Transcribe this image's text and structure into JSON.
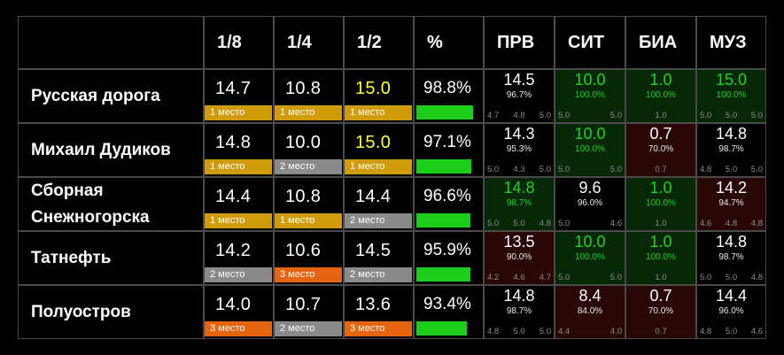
{
  "columns": {
    "r18": "1/8",
    "r14": "1/4",
    "r12": "1/2",
    "pct": "%",
    "prv": "ПРВ",
    "sit": "СИТ",
    "bia": "БИА",
    "muz": "МУЗ"
  },
  "colors": {
    "place_1": "#d19c0c",
    "place_2": "#8a8a8a",
    "place_3": "#e5640f",
    "progress": "#1ccd1c",
    "winner_text": "#ffff3a",
    "good_bg": "#062806",
    "bad_bg": "#2a0707",
    "good_text": "#22d022"
  },
  "teams": [
    {
      "name": "Русская дорога",
      "rounds": [
        {
          "score": "14.7",
          "place": "1 место",
          "rank": 1,
          "winner": false
        },
        {
          "score": "10.8",
          "place": "1 место",
          "rank": 1,
          "winner": false
        },
        {
          "score": "15.0",
          "place": "1 место",
          "rank": 1,
          "winner": true
        }
      ],
      "percent": "98.8%",
      "percent_value": 0.988,
      "judges": [
        {
          "score": "14.5",
          "sub": "96.7%",
          "marks": [
            "4.7",
            "4.8",
            "5.0"
          ],
          "tone": "neutral"
        },
        {
          "score": "10.0",
          "sub": "100.0%",
          "marks": [
            "5.0",
            "5.0"
          ],
          "tone": "green"
        },
        {
          "score": "1.0",
          "sub": "100.0%",
          "marks": [
            "1.0"
          ],
          "tone": "green"
        },
        {
          "score": "15.0",
          "sub": "100.0%",
          "marks": [
            "5.0",
            "5.0",
            "5.0"
          ],
          "tone": "green"
        }
      ]
    },
    {
      "name": "Михаил Дудиков",
      "rounds": [
        {
          "score": "14.8",
          "place": "1 место",
          "rank": 1,
          "winner": false
        },
        {
          "score": "10.0",
          "place": "2 место",
          "rank": 2,
          "winner": false
        },
        {
          "score": "15.0",
          "place": "1 место",
          "rank": 1,
          "winner": true
        }
      ],
      "percent": "97.1%",
      "percent_value": 0.971,
      "judges": [
        {
          "score": "14.3",
          "sub": "95.3%",
          "marks": [
            "5.0",
            "4.3",
            "5.0"
          ],
          "tone": "neutral"
        },
        {
          "score": "10.0",
          "sub": "100.0%",
          "marks": [
            "5.0",
            "5.0"
          ],
          "tone": "green"
        },
        {
          "score": "0.7",
          "sub": "70.0%",
          "marks": [
            "0.7"
          ],
          "tone": "red"
        },
        {
          "score": "14.8",
          "sub": "98.7%",
          "marks": [
            "4.8",
            "5.0",
            "5.0"
          ],
          "tone": "neutral"
        }
      ]
    },
    {
      "name": "Сборная Снежногорска",
      "rounds": [
        {
          "score": "14.4",
          "place": "1 место",
          "rank": 1,
          "winner": false
        },
        {
          "score": "10.8",
          "place": "1 место",
          "rank": 1,
          "winner": false
        },
        {
          "score": "14.4",
          "place": "2 место",
          "rank": 2,
          "winner": false
        }
      ],
      "percent": "96.6%",
      "percent_value": 0.966,
      "judges": [
        {
          "score": "14.8",
          "sub": "98.7%",
          "marks": [
            "5.0",
            "5.0",
            "4.8"
          ],
          "tone": "green"
        },
        {
          "score": "9.6",
          "sub": "96.0%",
          "marks": [
            "5.0",
            "4.6"
          ],
          "tone": "neutral"
        },
        {
          "score": "1.0",
          "sub": "100.0%",
          "marks": [
            "1.0"
          ],
          "tone": "green"
        },
        {
          "score": "14.2",
          "sub": "94.7%",
          "marks": [
            "4.6",
            "4.8",
            "4.8"
          ],
          "tone": "red"
        }
      ]
    },
    {
      "name": "Татнефть",
      "rounds": [
        {
          "score": "14.2",
          "place": "2 место",
          "rank": 2,
          "winner": false
        },
        {
          "score": "10.6",
          "place": "3 место",
          "rank": 3,
          "winner": false
        },
        {
          "score": "14.5",
          "place": "2 место",
          "rank": 2,
          "winner": false
        }
      ],
      "percent": "95.9%",
      "percent_value": 0.959,
      "judges": [
        {
          "score": "13.5",
          "sub": "90.0%",
          "marks": [
            "4.2",
            "4.6",
            "4.7"
          ],
          "tone": "red"
        },
        {
          "score": "10.0",
          "sub": "100.0%",
          "marks": [
            "5.0",
            "5.0"
          ],
          "tone": "green"
        },
        {
          "score": "1.0",
          "sub": "100.0%",
          "marks": [
            "1.0"
          ],
          "tone": "green"
        },
        {
          "score": "14.8",
          "sub": "98.7%",
          "marks": [
            "5.0",
            "5.0",
            "4.8"
          ],
          "tone": "neutral"
        }
      ]
    },
    {
      "name": "Полуостров",
      "rounds": [
        {
          "score": "14.0",
          "place": "3 место",
          "rank": 3,
          "winner": false
        },
        {
          "score": "10.7",
          "place": "2 место",
          "rank": 2,
          "winner": false
        },
        {
          "score": "13.6",
          "place": "3 место",
          "rank": 3,
          "winner": false
        }
      ],
      "percent": "93.4%",
      "percent_value": 0.934,
      "judges": [
        {
          "score": "14.8",
          "sub": "98.7%",
          "marks": [
            "4.8",
            "5.0",
            "5.0"
          ],
          "tone": "neutral"
        },
        {
          "score": "8.4",
          "sub": "84.0%",
          "marks": [
            "4.4",
            "4.0"
          ],
          "tone": "red"
        },
        {
          "score": "0.7",
          "sub": "70.0%",
          "marks": [
            "0.7"
          ],
          "tone": "red"
        },
        {
          "score": "14.4",
          "sub": "96.0%",
          "marks": [
            "4.8",
            "5.0",
            "4.6"
          ],
          "tone": "neutral"
        }
      ]
    }
  ]
}
